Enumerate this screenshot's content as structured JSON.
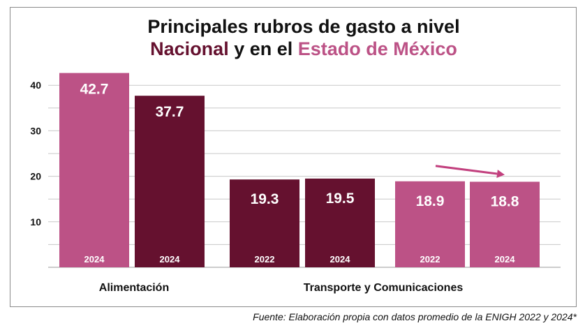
{
  "chart_data": {
    "type": "bar",
    "title": {
      "line1": "Principales rubros de gasto a nivel",
      "line2_part1": "Nacional",
      "line2_part2": " y en el ",
      "line2_part3": "Estado de México"
    },
    "ylim": [
      0,
      40
    ],
    "yticks": [
      "10",
      "20",
      "30",
      "40"
    ],
    "groups": [
      "Alimentación",
      "Transporte y Comunicaciones"
    ],
    "bars": [
      {
        "group": 0,
        "series": "Estado de México",
        "year": "2024",
        "value": 42.7,
        "label": "42.7"
      },
      {
        "group": 0,
        "series": "Nacional",
        "year": "2024",
        "value": 37.7,
        "label": "37.7"
      },
      {
        "group": 1,
        "series": "Nacional",
        "year": "2022",
        "value": 19.3,
        "label": "19.3"
      },
      {
        "group": 1,
        "series": "Nacional",
        "year": "2024",
        "value": 19.5,
        "label": "19.5"
      },
      {
        "group": 1,
        "series": "Estado de México",
        "year": "2022",
        "value": 18.9,
        "label": "18.9"
      },
      {
        "group": 1,
        "series": "Estado de México",
        "year": "2024",
        "value": 18.8,
        "label": "18.8"
      }
    ],
    "annotations": [
      {
        "type": "arrow",
        "from_bar": 4,
        "to_bar": 5,
        "meaning": "decrease"
      }
    ],
    "grid": true,
    "colors": {
      "Nacional": "#65112f",
      "Estado de México": "#bc5286",
      "arrow": "#c2407e"
    }
  },
  "footnote": "Fuente: Elaboración propia con datos promedio de la ENIGH 2022 y 2024*"
}
